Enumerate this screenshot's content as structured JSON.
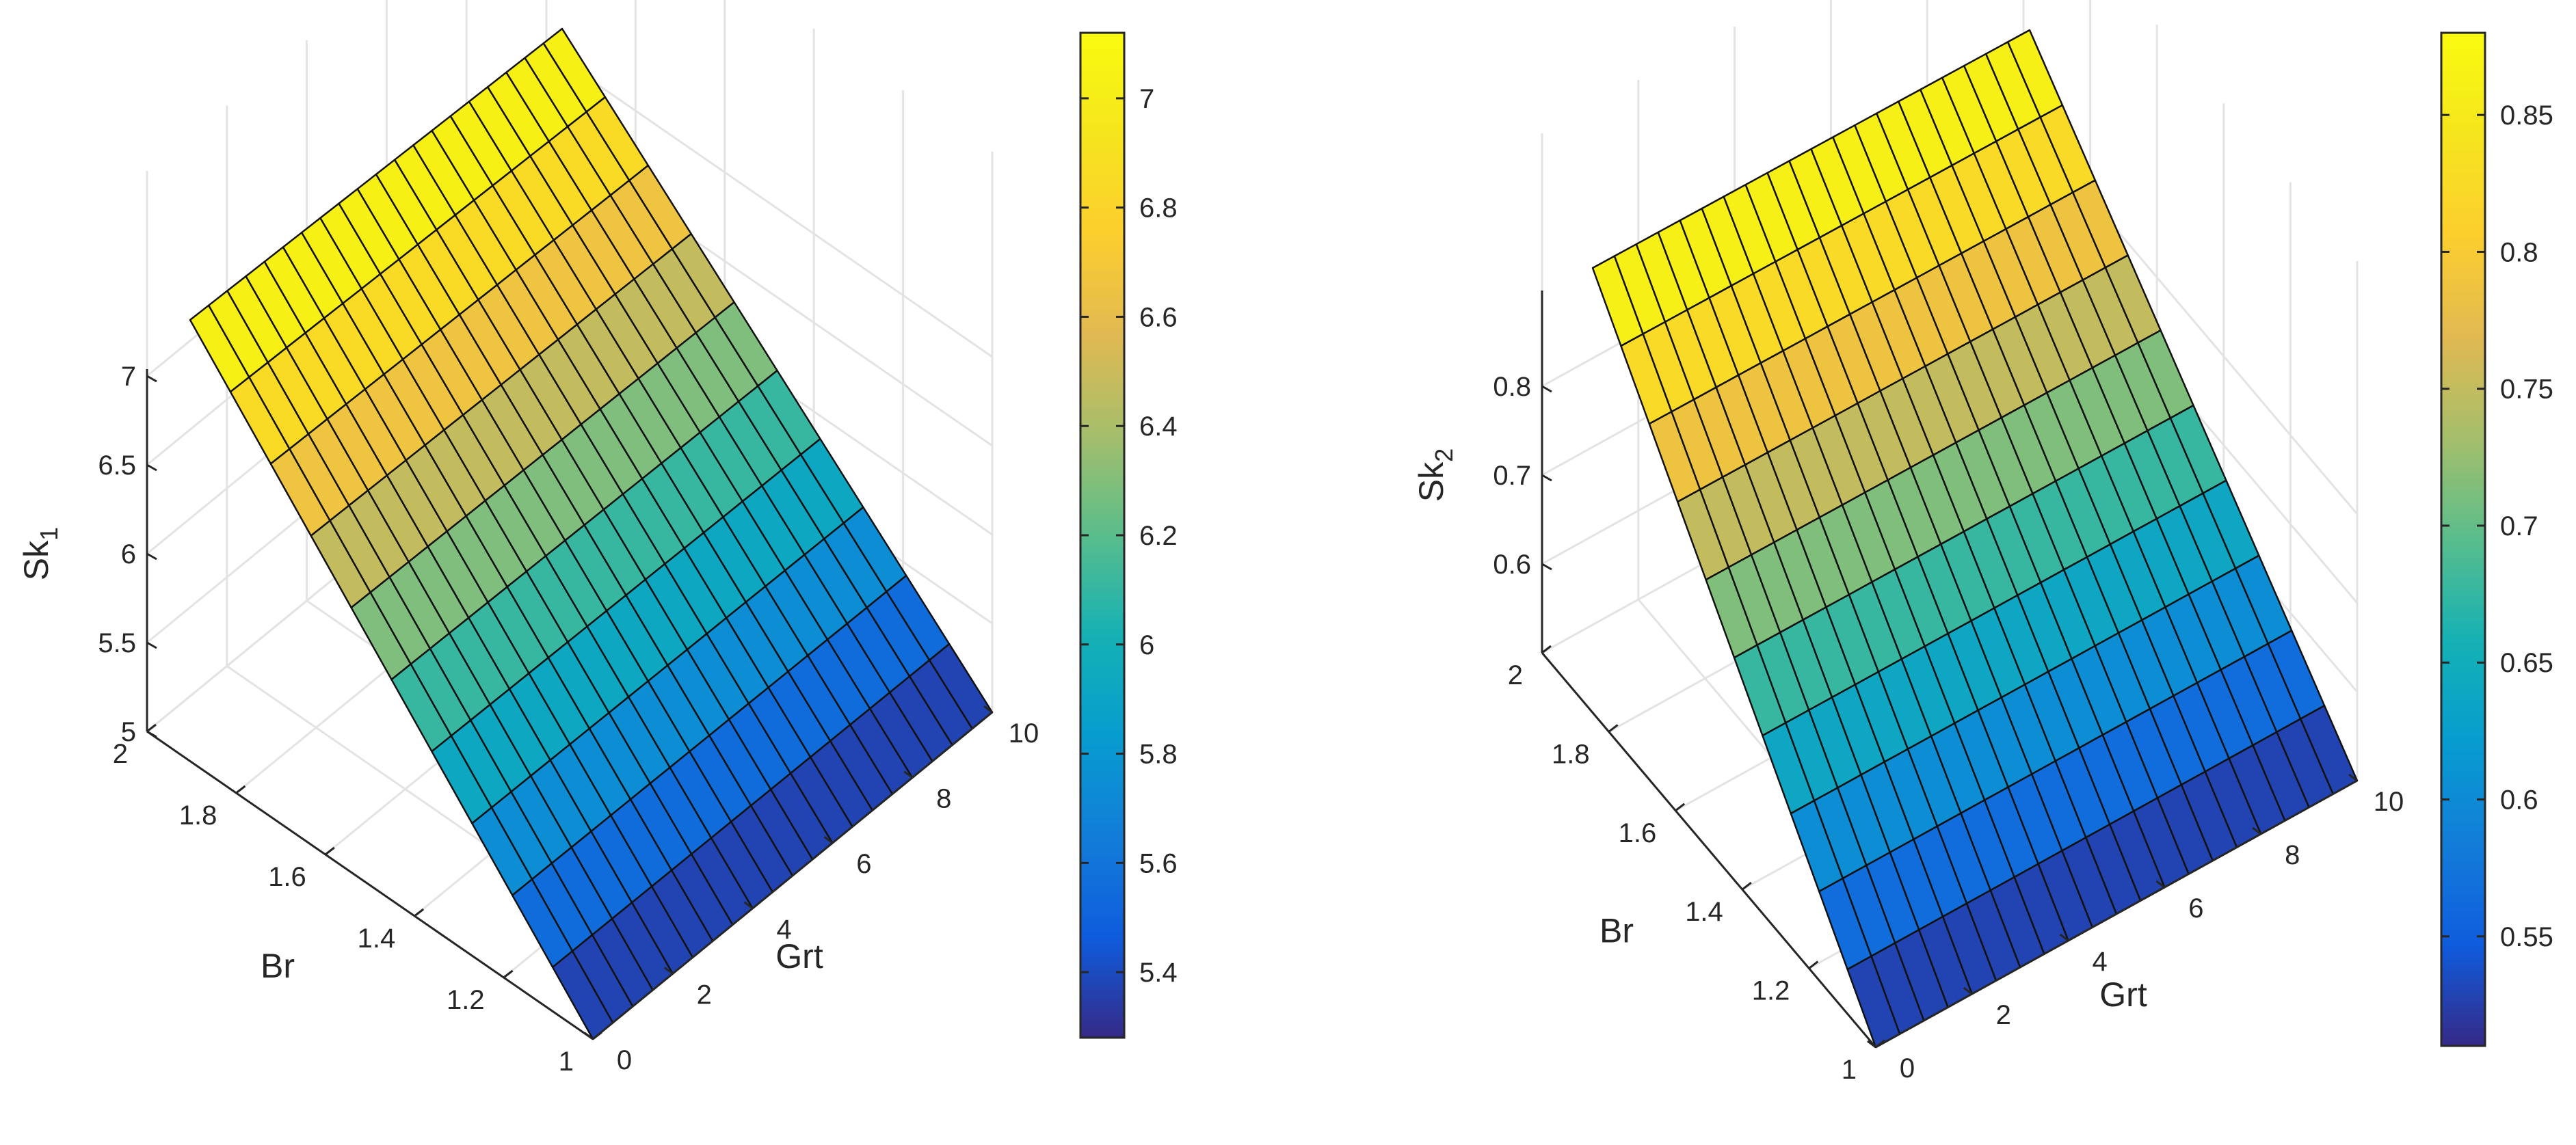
{
  "chart_data": [
    {
      "type": "surface",
      "xlabel": "Grt",
      "ylabel": "Br",
      "zlabel_main": "Sk",
      "zlabel_sub": "1",
      "x_ticks": [
        "0",
        "2",
        "4",
        "6",
        "8",
        "10"
      ],
      "x_range": [
        0,
        10
      ],
      "y_ticks": [
        "1",
        "1.2",
        "1.4",
        "1.6",
        "1.8",
        "2"
      ],
      "y_range": [
        1,
        2
      ],
      "z_ticks": [
        "5",
        "5.5",
        "6",
        "6.5",
        "7"
      ],
      "z_range": [
        5,
        7
      ],
      "colorbar_ticks": [
        "5.4",
        "5.6",
        "5.8",
        "6",
        "6.2",
        "6.4",
        "6.6",
        "6.8",
        "7"
      ],
      "colorbar_range": [
        5.28,
        7.12
      ],
      "surface": "linear in Br (approx.)",
      "z_at_Br_min": 5.28,
      "z_at_Br_max": 7.12,
      "grid": true,
      "colormap": "parula"
    },
    {
      "type": "surface",
      "xlabel": "Grt",
      "ylabel": "Br",
      "zlabel_main": "Sk",
      "zlabel_sub": "2",
      "x_ticks": [
        "0",
        "2",
        "4",
        "6",
        "8",
        "10"
      ],
      "x_range": [
        0,
        10
      ],
      "y_ticks": [
        "1",
        "1.2",
        "1.4",
        "1.6",
        "1.8",
        "2"
      ],
      "y_range": [
        1,
        2
      ],
      "z_ticks": [
        "0.6",
        "0.7",
        "0.8"
      ],
      "z_range": [
        0.5,
        0.9
      ],
      "colorbar_ticks": [
        "0.55",
        "0.6",
        "0.65",
        "0.7",
        "0.75",
        "0.8",
        "0.85"
      ],
      "colorbar_range": [
        0.51,
        0.88
      ],
      "surface": "linear in Br (approx.)",
      "z_at_Br_min": 0.51,
      "z_at_Br_max": 0.88,
      "grid": true,
      "colormap": "parula"
    }
  ]
}
